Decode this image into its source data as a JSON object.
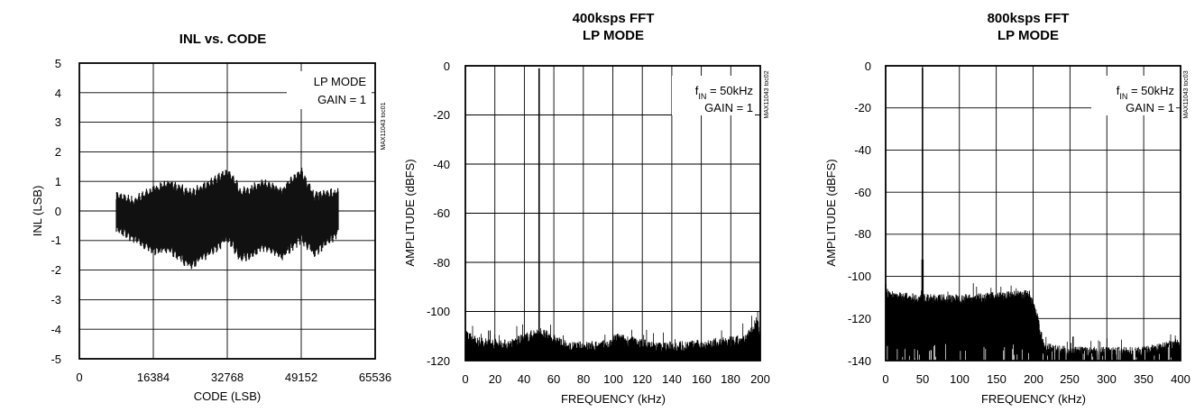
{
  "chart_data": [
    {
      "type": "line",
      "title": "INL vs. CODE",
      "xlabel": "CODE (LSB)",
      "ylabel": "INL (LSB)",
      "xlim": [
        0,
        65536
      ],
      "ylim": [
        -5,
        5
      ],
      "xticks": [
        "0",
        "16384",
        "32768",
        "49152",
        "65536"
      ],
      "yticks": [
        "5",
        "4",
        "3",
        "2",
        "1",
        "0",
        "-1",
        "-2",
        "-3",
        "-4",
        "-5"
      ],
      "annotation": [
        "LP MODE",
        "GAIN = 1"
      ],
      "figure_code": "MAX11043 toc01",
      "grid": true,
      "series": [
        {
          "x": [
            8192,
            12000,
            16384,
            20000,
            24576,
            28000,
            32768,
            36000,
            40960,
            45000,
            49152,
            52000,
            57344
          ],
          "upper": [
            0.5,
            0.3,
            0.7,
            0.9,
            0.6,
            0.8,
            1.3,
            0.6,
            0.9,
            0.7,
            1.3,
            0.5,
            0.6
          ],
          "lower": [
            -0.6,
            -0.9,
            -1.3,
            -1.3,
            -1.8,
            -1.5,
            -0.9,
            -1.6,
            -1.2,
            -1.5,
            -0.9,
            -1.4,
            -0.7
          ]
        }
      ]
    },
    {
      "type": "line",
      "title": "400ksps FFT",
      "subtitle": "LP MODE",
      "xlabel": "FREQUENCY (kHz)",
      "ylabel": "AMPLITUDE (dBFS)",
      "xlim": [
        0,
        200
      ],
      "ylim": [
        -120,
        0
      ],
      "xticks": [
        "0",
        "20",
        "40",
        "60",
        "80",
        "100",
        "120",
        "140",
        "160",
        "180",
        "200"
      ],
      "yticks": [
        "0",
        "-20",
        "-40",
        "-60",
        "-80",
        "-100",
        "-120"
      ],
      "annotation": [
        "f_IN = 50kHz",
        "GAIN = 1"
      ],
      "figure_code": "MAX11043 toc02",
      "grid": true,
      "series": [
        {
          "x": [
            0,
            2,
            10,
            30,
            49,
            50,
            51,
            70,
            100,
            101,
            130,
            160,
            190,
            198,
            200
          ],
          "y": [
            -108,
            -112,
            -114,
            -115,
            -110,
            -1,
            -110,
            -116,
            -115,
            -112,
            -116,
            -115,
            -113,
            -105,
            -112
          ]
        }
      ]
    },
    {
      "type": "line",
      "title": "800ksps FFT",
      "subtitle": "LP MODE",
      "xlabel": "FREQUENCY (kHz)",
      "ylabel": "AMPLITUDE (dBFS)",
      "xlim": [
        0,
        400
      ],
      "ylim": [
        -140,
        0
      ],
      "xticks": [
        "0",
        "50",
        "100",
        "150",
        "200",
        "250",
        "300",
        "350",
        "400"
      ],
      "yticks": [
        "0",
        "-20",
        "-40",
        "-60",
        "-80",
        "-100",
        "-120",
        "-140"
      ],
      "annotation": [
        "f_IN = 50kHz",
        "GAIN = 1"
      ],
      "figure_code": "MAX11043 toc03",
      "grid": true,
      "series": [
        {
          "x": [
            0,
            3,
            20,
            48,
            50,
            52,
            100,
            150,
            195,
            205,
            215,
            250,
            300,
            350,
            398,
            400
          ],
          "y": [
            -106,
            -110,
            -111,
            -112,
            -1,
            -112,
            -112,
            -111,
            -110,
            -120,
            -135,
            -137,
            -137,
            -137,
            -133,
            -136
          ]
        }
      ]
    }
  ]
}
